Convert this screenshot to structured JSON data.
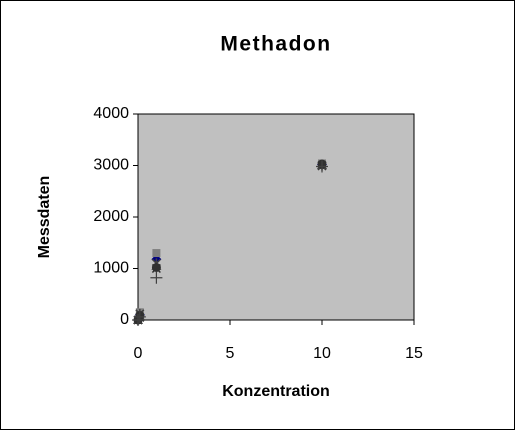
{
  "chart_data": {
    "type": "scatter",
    "title": "Methadon",
    "x_label": "Konzentration",
    "y_label": "Messdaten",
    "x": [
      0,
      0.1,
      1,
      10
    ],
    "series": [
      {
        "color": "#000080",
        "marker": "diamond",
        "values": [
          0,
          100,
          1180,
          3020
        ]
      },
      {
        "color": "#808080",
        "marker": "square",
        "values": [
          0,
          150,
          1300,
          3040
        ]
      },
      {
        "color": "#404040",
        "marker": "triangle",
        "values": [
          0,
          80,
          1050,
          3010
        ]
      },
      {
        "color": "#303030",
        "marker": "x",
        "values": [
          0,
          50,
          1000,
          2990
        ]
      },
      {
        "color": "#404040",
        "marker": "star",
        "values": [
          0,
          120,
          1100,
          3000
        ]
      },
      {
        "color": "#303030",
        "marker": "circle",
        "values": [
          0,
          90,
          1020,
          3030
        ]
      },
      {
        "color": "#404040",
        "marker": "plus",
        "values": [
          0,
          60,
          820,
          2980
        ]
      }
    ],
    "xlim": [
      0,
      15
    ],
    "xticks": [
      0,
      5,
      10,
      15
    ],
    "ylim": [
      0,
      4000
    ],
    "yticks": [
      0,
      1000,
      2000,
      3000,
      4000
    ],
    "plot_background": "#c0c0c0"
  }
}
